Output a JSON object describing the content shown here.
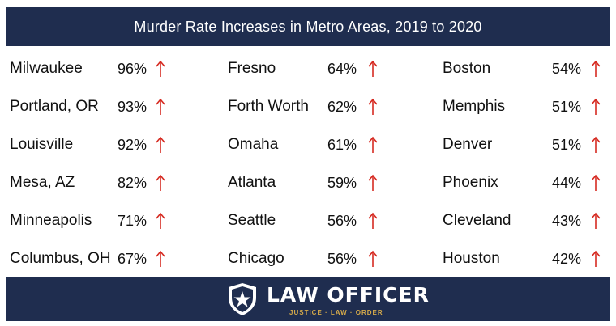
{
  "chart_data": {
    "type": "table",
    "title": "Murder Rate Increases in Metro Areas, 2019 to 2020",
    "columns": [
      [
        {
          "city": "Milwaukee",
          "value": "96%"
        },
        {
          "city": "Portland, OR",
          "value": "93%"
        },
        {
          "city": "Louisville",
          "value": "92%"
        },
        {
          "city": "Mesa, AZ",
          "value": "82%"
        },
        {
          "city": "Minneapolis",
          "value": "71%"
        },
        {
          "city": "Columbus, OH",
          "value": "67%"
        }
      ],
      [
        {
          "city": "Fresno",
          "value": "64%"
        },
        {
          "city": "Forth Worth",
          "value": "62%"
        },
        {
          "city": "Omaha",
          "value": "61%"
        },
        {
          "city": "Atlanta",
          "value": "59%"
        },
        {
          "city": "Seattle",
          "value": "56%"
        },
        {
          "city": "Chicago",
          "value": "56%"
        }
      ],
      [
        {
          "city": "Boston",
          "value": "54%"
        },
        {
          "city": "Memphis",
          "value": "51%"
        },
        {
          "city": "Denver",
          "value": "51%"
        },
        {
          "city": "Phoenix",
          "value": "44%"
        },
        {
          "city": "Cleveland",
          "value": "43%"
        },
        {
          "city": "Houston",
          "value": "42%"
        }
      ]
    ],
    "arrow_icon": "up-arrow-icon",
    "arrow_color": "#d62b22"
  },
  "footer": {
    "logo_icon": "star-shield-icon",
    "brand": "LAW OFFICER",
    "tagline": "JUSTICE · LAW · ORDER",
    "background": "#1f2d4f",
    "tagline_color": "#d4a94a"
  },
  "header_background": "#1f2d4f"
}
